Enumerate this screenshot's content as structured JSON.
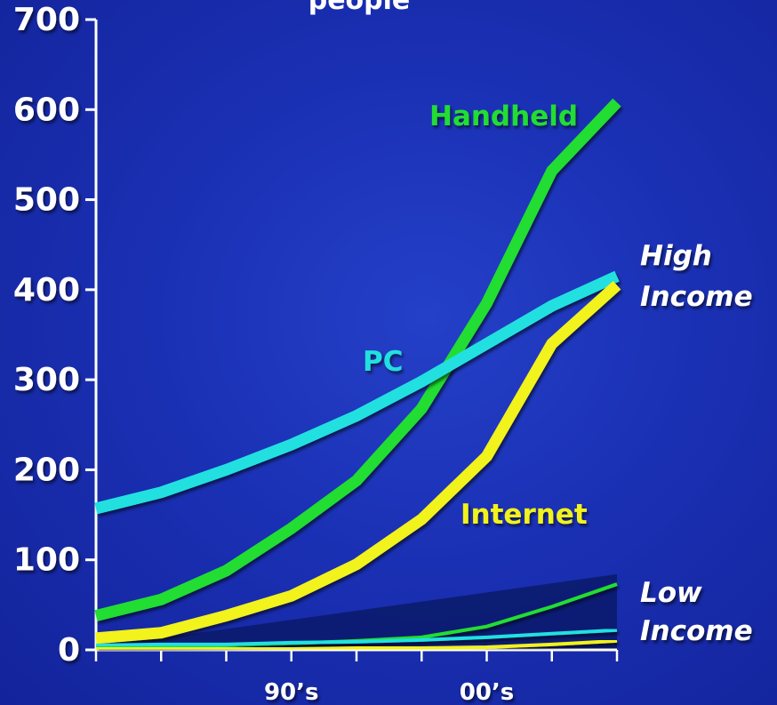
{
  "chart_data": {
    "type": "line",
    "title": "people",
    "yticks": [
      0,
      100,
      200,
      300,
      400,
      500,
      600,
      700
    ],
    "ylim": [
      0,
      700
    ],
    "xlim": [
      0,
      8
    ],
    "x_tick_positions": [
      0,
      1,
      2,
      3,
      4,
      5,
      6,
      7,
      8
    ],
    "categories": [
      {
        "label": "90’s",
        "x": 3
      },
      {
        "label": "00’s",
        "x": 6
      }
    ],
    "group_labels": [
      {
        "line1": "High",
        "line2": "Income"
      },
      {
        "line1": "Low",
        "line2": "Income"
      }
    ],
    "series": [
      {
        "name": "Handheld",
        "group": "High Income",
        "color": "#22dd33",
        "x": [
          0,
          1,
          2,
          3,
          4,
          5,
          6,
          7,
          8
        ],
        "values": [
          38,
          56,
          88,
          135,
          188,
          268,
          385,
          532,
          608
        ]
      },
      {
        "name": "PC",
        "group": "High Income",
        "color": "#22e0e0",
        "x": [
          0,
          1,
          2,
          3,
          4,
          5,
          6,
          7,
          8
        ],
        "values": [
          157,
          175,
          200,
          228,
          260,
          298,
          340,
          382,
          415
        ]
      },
      {
        "name": "Internet",
        "group": "High Income",
        "color": "#f2f21a",
        "x": [
          0,
          1,
          2,
          3,
          4,
          5,
          6,
          7,
          8
        ],
        "values": [
          13,
          19,
          38,
          60,
          95,
          145,
          215,
          340,
          405
        ]
      },
      {
        "group": "Low Income",
        "color": "#22dd33",
        "x": [
          0,
          1,
          2,
          3,
          4,
          5,
          6,
          7,
          8
        ],
        "values": [
          3,
          4,
          5,
          7,
          10,
          14,
          26,
          48,
          73
        ]
      },
      {
        "group": "Low Income",
        "color": "#22e0e0",
        "x": [
          0,
          1,
          2,
          3,
          4,
          5,
          6,
          7,
          8
        ],
        "values": [
          5,
          6,
          6,
          8,
          9,
          11,
          14,
          18,
          22
        ]
      },
      {
        "group": "Low Income",
        "color": "#f2f21a",
        "x": [
          0,
          1,
          2,
          3,
          4,
          5,
          6,
          7,
          8
        ],
        "values": [
          1,
          1,
          1,
          1,
          2,
          2,
          3,
          6,
          10
        ]
      }
    ],
    "low_income_band": {
      "color": "#0b1a6a",
      "x": [
        0,
        8
      ],
      "top_values": [
        3,
        84
      ]
    },
    "grid": false,
    "legend": "none"
  }
}
